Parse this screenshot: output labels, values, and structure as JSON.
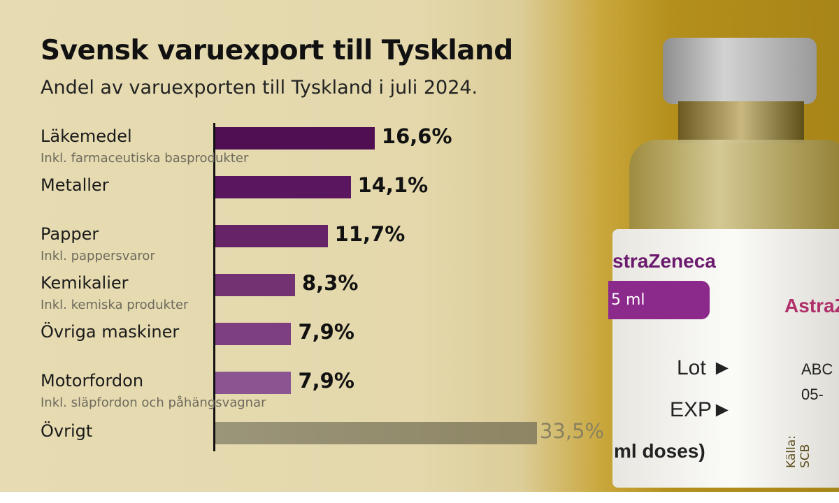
{
  "title": "Svensk varuexport till Tyskland",
  "subtitle": "Andel av varuexporten till Tyskland i juli 2024.",
  "source": "Källa: SCB",
  "photo": {
    "brand": "AstraZeneca",
    "brand_partial": "straZeneca",
    "brand_partial2": "AstraZ",
    "pill_text": "5 ml",
    "lot": "Lot ►",
    "exp": "EXP►",
    "doses": "ml doses)",
    "code1": "ABC",
    "code2": "05-"
  },
  "chart_data": {
    "type": "bar",
    "orientation": "horizontal",
    "unit": "%",
    "categories": [
      "Läkemedel",
      "Metaller",
      "Papper",
      "Kemikalier",
      "Övriga maskiner",
      "Motorfordon",
      "Övrigt"
    ],
    "notes": [
      "Inkl. farmaceutiska basprodukter",
      "",
      "Inkl. pappersvaror",
      "Inkl. kemiska produkter",
      "",
      "Inkl. släpfordon och påhängsvagnar",
      ""
    ],
    "values": [
      16.6,
      14.1,
      11.7,
      8.3,
      7.9,
      7.9,
      33.5
    ],
    "labels": [
      "16,6%",
      "14,1%",
      "11,7%",
      "8,3%",
      "7,9%",
      "7,9%",
      "33,5%"
    ],
    "colors": [
      "#4f0f52",
      "#5a165e",
      "#662466",
      "#733373",
      "#7d3f7f",
      "#8a5590",
      "#97906f"
    ],
    "label_colors": [
      "#111111",
      "#111111",
      "#111111",
      "#111111",
      "#111111",
      "#111111",
      "#8a8260"
    ]
  }
}
